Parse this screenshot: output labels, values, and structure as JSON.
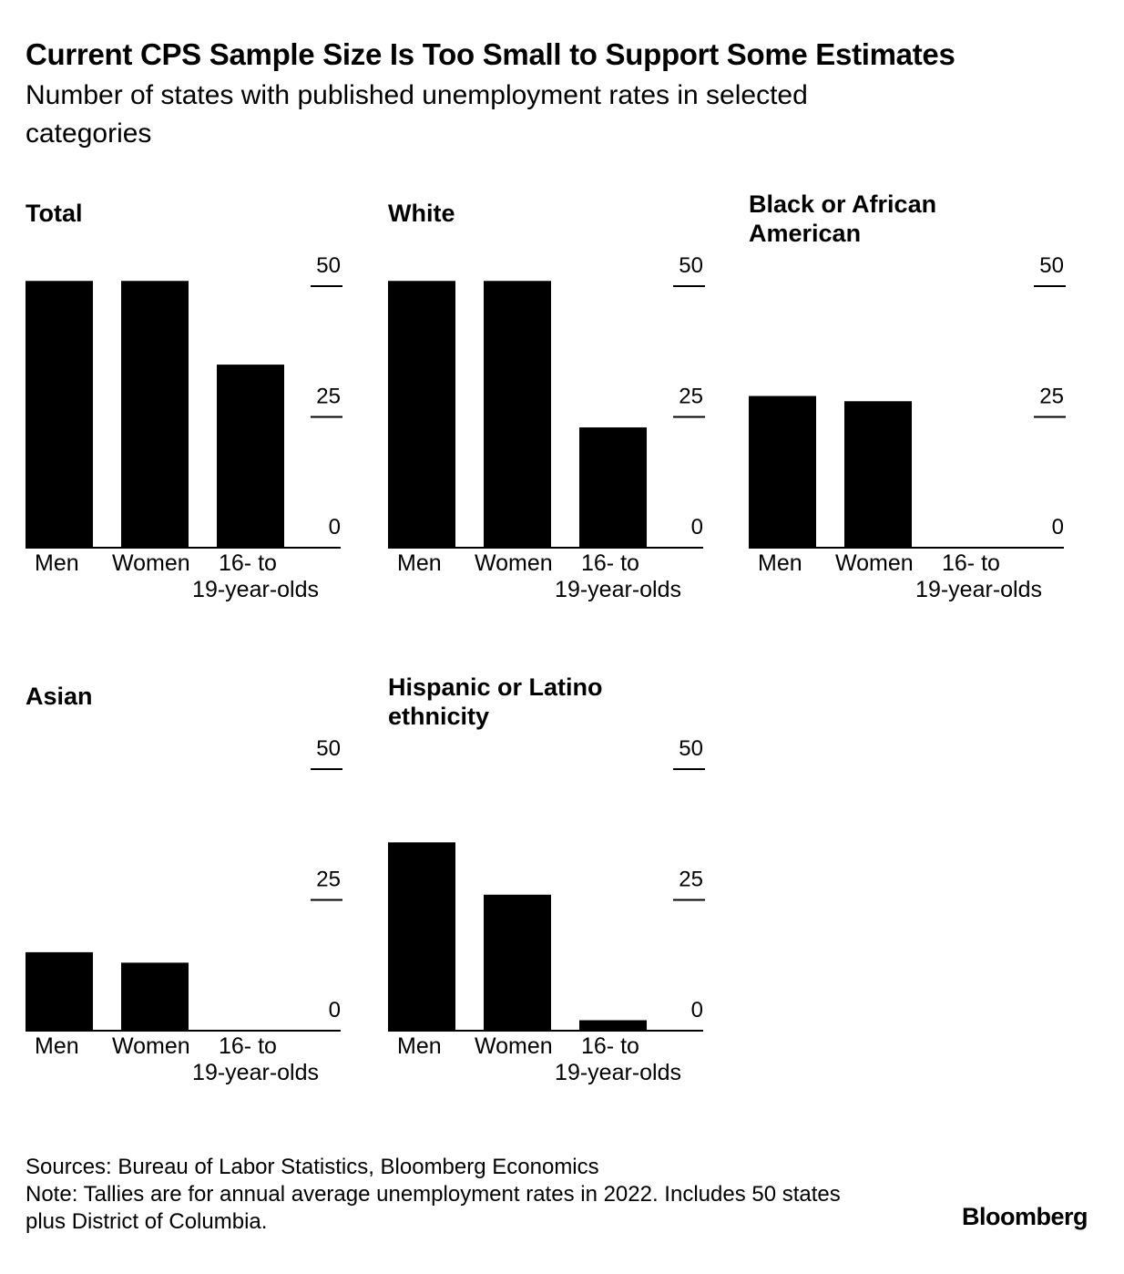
{
  "title": "Current CPS Sample Size Is Too Small to Support Some Estimates",
  "subtitle": "Number of states with published unemployment rates in selected categories",
  "chart_data": [
    {
      "type": "bar",
      "title": "Total",
      "categories": [
        "Men",
        "Women",
        "16- to 19-year-olds"
      ],
      "values": [
        51,
        51,
        35
      ],
      "ylim": [
        0,
        50
      ],
      "yticks": [
        "50",
        "25",
        "0"
      ],
      "ylabel": "",
      "xlabel": ""
    },
    {
      "type": "bar",
      "title": "White",
      "categories": [
        "Men",
        "Women",
        "16- to 19-year-olds"
      ],
      "values": [
        51,
        51,
        23
      ],
      "ylim": [
        0,
        50
      ],
      "yticks": [
        "50",
        "25",
        "0"
      ],
      "ylabel": "",
      "xlabel": ""
    },
    {
      "type": "bar",
      "title": "Black or African American",
      "categories": [
        "Men",
        "Women",
        "16- to 19-year-olds"
      ],
      "values": [
        29,
        28,
        0
      ],
      "ylim": [
        0,
        50
      ],
      "yticks": [
        "50",
        "25",
        "0"
      ],
      "ylabel": "",
      "xlabel": ""
    },
    {
      "type": "bar",
      "title": "Asian",
      "categories": [
        "Men",
        "Women",
        "16- to 19-year-olds"
      ],
      "values": [
        15,
        13,
        0
      ],
      "ylim": [
        0,
        50
      ],
      "yticks": [
        "50",
        "25",
        "0"
      ],
      "ylabel": "",
      "xlabel": ""
    },
    {
      "type": "bar",
      "title": "Hispanic or Latino ethnicity",
      "categories": [
        "Men",
        "Women",
        "16- to 19-year-olds"
      ],
      "values": [
        36,
        26,
        2
      ],
      "ylim": [
        0,
        50
      ],
      "yticks": [
        "50",
        "25",
        "0"
      ],
      "ylabel": "",
      "xlabel": ""
    }
  ],
  "footer": {
    "sources": "Sources: Bureau of Labor Statistics, Bloomberg Economics",
    "note": "Note: Tallies are for annual average unemployment rates in 2022. Includes 50 states plus District of Columbia."
  },
  "brand": "Bloomberg",
  "colors": {
    "bar": "#000000",
    "background": "#ffffff",
    "text": "#000000"
  }
}
